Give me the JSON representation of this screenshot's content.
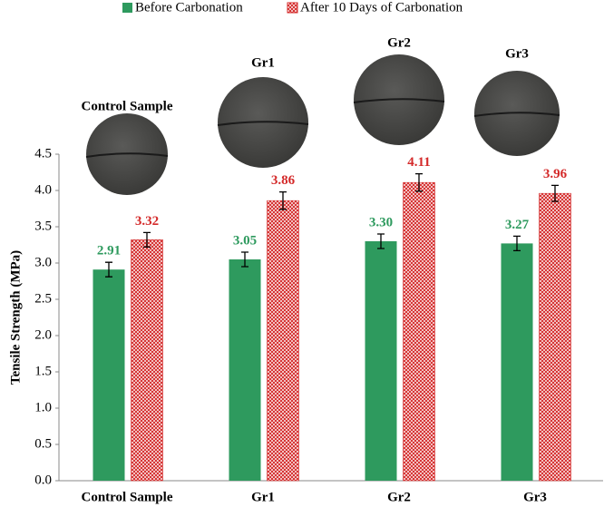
{
  "chart_data": {
    "type": "bar",
    "y_label": "Tensile Strength (MPa)",
    "categories": [
      "Control Sample",
      "Gr1",
      "Gr2",
      "Gr3"
    ],
    "series": [
      {
        "name": "Before Carbonation",
        "color": "#2e9a5e",
        "values": [
          2.91,
          3.05,
          3.3,
          3.27
        ],
        "value_labels": [
          "2.91",
          "3.05",
          "3.30",
          "3.27"
        ],
        "errors": [
          0.1,
          0.1,
          0.1,
          0.1
        ]
      },
      {
        "name": "After 10 Days of Carbonation",
        "color": "#d42a2a",
        "pattern": "crosshatch",
        "values": [
          3.32,
          3.86,
          4.11,
          3.96
        ],
        "value_labels": [
          "3.32",
          "3.86",
          "4.11",
          "3.96"
        ],
        "errors": [
          0.1,
          0.12,
          0.12,
          0.11
        ]
      }
    ],
    "annotations": [
      "Control Sample",
      "Gr1",
      "Gr2",
      "Gr3"
    ],
    "ylim": [
      0,
      4.5
    ],
    "yticks": [
      {
        "value": 0,
        "label": "0.0"
      },
      {
        "value": 0.5,
        "label": "0.5"
      },
      {
        "value": 1,
        "label": "1.0"
      },
      {
        "value": 1.5,
        "label": "1.5"
      },
      {
        "value": 2,
        "label": "2.0"
      },
      {
        "value": 2.5,
        "label": "2.5"
      },
      {
        "value": 3,
        "label": "3.0"
      },
      {
        "value": 3.5,
        "label": "3.5"
      },
      {
        "value": 4,
        "label": "4.0"
      },
      {
        "value": 4.5,
        "label": "4.5"
      }
    ],
    "grid": false,
    "legend": "top"
  }
}
